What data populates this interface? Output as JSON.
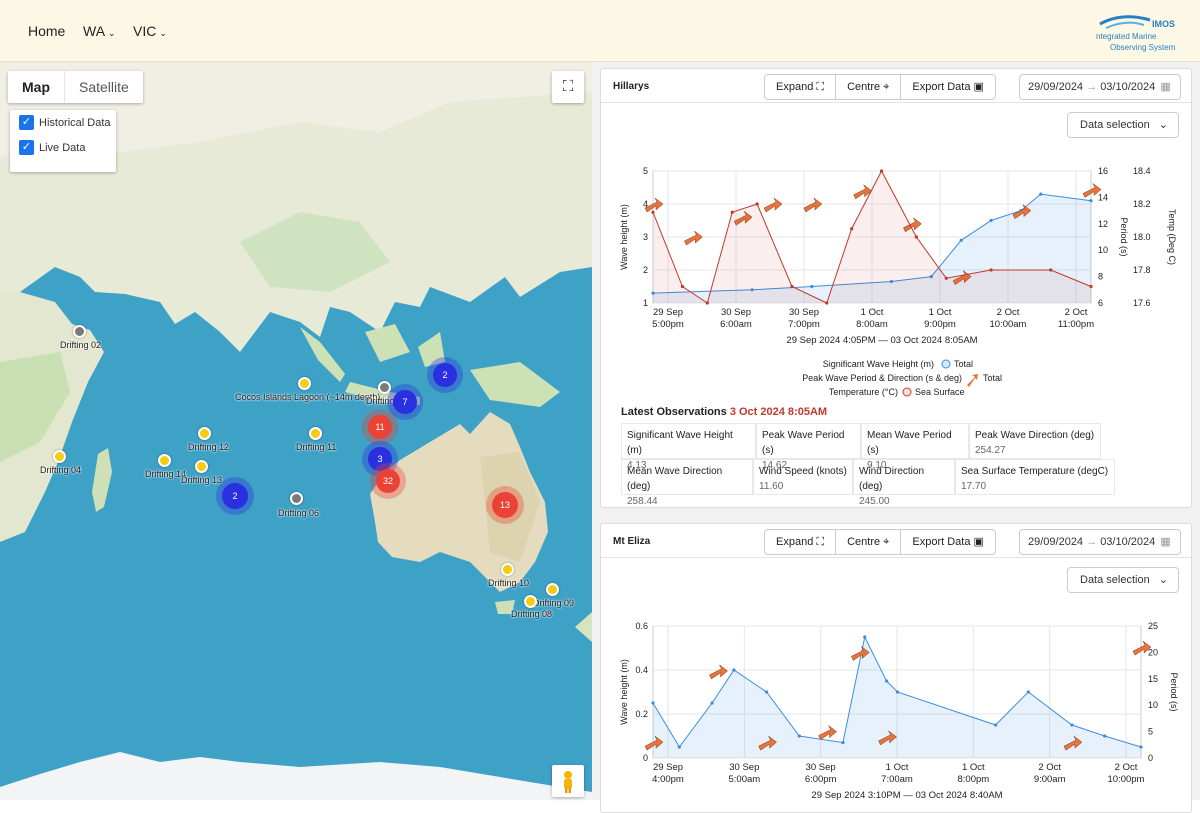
{
  "nav": {
    "home": "Home",
    "wa": "WA",
    "vic": "VIC"
  },
  "logo": {
    "brand": "IMOS",
    "line1": "ntegrated Marine",
    "line2": "Observing System"
  },
  "map": {
    "tabs": {
      "map": "Map",
      "satellite": "Satellite"
    },
    "layers": {
      "historical": "Historical Data",
      "live": "Live Data"
    },
    "labels": {
      "d02": "Drifting 02",
      "d04": "Drifting 04",
      "d14": "Drifting 14",
      "d12": "Drifting 12",
      "d13": "Drifting 13",
      "d06": "Drifting 06",
      "d11": "Drifting 11",
      "cocos": "Cocos Islands Lagoon (~14m depth)",
      "dx": "Drifting",
      "d10": "Drifting 10",
      "d09": "Drifting 09",
      "d08": "Drifting 08"
    },
    "clusters": {
      "c2a": "2",
      "c7": "7",
      "c11": "11",
      "c3": "3",
      "c32": "32",
      "c2b": "2",
      "c13": "13"
    },
    "colors": {
      "ocean": "#3ea1c6",
      "land": "#e8ead8",
      "historical": "#ea4335",
      "live": "#2a2fe0"
    }
  },
  "hillarys": {
    "title": "Hillarys",
    "expand": "Expand",
    "centre": "Centre",
    "export": "Export Data",
    "date_from": "29/09/2024",
    "date_to": "03/10/2024",
    "data_selection": "Data selection",
    "chart": {
      "yleft_label": "Wave height (m)",
      "yperiod_label": "Period (s)",
      "ytemp_label": "Temp (Deg C)",
      "yleft_ticks": [
        "1",
        "2",
        "3",
        "4",
        "5"
      ],
      "yperiod_ticks": [
        "6",
        "8",
        "10",
        "12",
        "14",
        "16"
      ],
      "ytemp_ticks": [
        "17.6",
        "17.8",
        "18.0",
        "18.2",
        "18.4"
      ],
      "xticks": [
        [
          "29 Sep",
          "5:00pm"
        ],
        [
          "30 Sep",
          "6:00am"
        ],
        [
          "30 Sep",
          "7:00pm"
        ],
        [
          "1 Oct",
          "8:00am"
        ],
        [
          "1 Oct",
          "9:00pm"
        ],
        [
          "2 Oct",
          "10:00am"
        ],
        [
          "2 Oct",
          "11:00pm"
        ]
      ],
      "range": "29 Sep 2024 4:05PM — 03 Oct 2024 8:05AM",
      "legend1_label": "Significant Wave Height (m)",
      "legend1_item": "Total",
      "legend2_label": "Peak Wave Period & Direction (s & deg)",
      "legend2_item": "Total",
      "legend3_label": "Temperature (°C)",
      "legend3_item": "Sea Surface"
    },
    "chart_data": {
      "type": "line",
      "title": "",
      "xlabel": "",
      "x_range": [
        "2024-09-29 16:05",
        "2024-10-03 08:05"
      ],
      "ylabel": "Wave height (m)",
      "ylim": [
        1,
        5
      ],
      "y2label": "Period (s)",
      "y2lim": [
        6,
        16
      ],
      "y3label": "Temp (Deg C)",
      "y3lim": [
        17.6,
        18.4
      ],
      "series": [
        {
          "name": "Total",
          "quantity": "Significant Wave Height (m)",
          "x": [
            "2024-09-29 16:05",
            "2024-09-30 12:00",
            "2024-10-01 00:00",
            "2024-10-01 16:00",
            "2024-10-02 00:00",
            "2024-10-02 06:00",
            "2024-10-02 12:00",
            "2024-10-02 18:00",
            "2024-10-02 22:00",
            "2024-10-03 08:05"
          ],
          "values": [
            1.3,
            1.4,
            1.5,
            1.65,
            1.8,
            2.9,
            3.5,
            3.8,
            4.3,
            4.1
          ]
        },
        {
          "name": "Total",
          "quantity": "Peak Wave Period & Direction (s & deg)",
          "x": [
            "2024-09-29 16:05",
            "2024-09-30 00:00",
            "2024-09-30 10:00",
            "2024-09-30 16:00",
            "2024-10-01 00:00",
            "2024-10-01 10:00",
            "2024-10-01 20:00",
            "2024-10-02 06:00",
            "2024-10-02 18:00",
            "2024-10-03 08:05"
          ],
          "values": [
            13.5,
            11,
            12.5,
            13.5,
            13.5,
            14.5,
            12,
            8,
            13,
            14.6
          ]
        },
        {
          "name": "Sea Surface",
          "quantity": "Temperature (°C)",
          "x": [
            "2024-09-29 16:05",
            "2024-09-29 22:00",
            "2024-09-30 03:00",
            "2024-09-30 08:00",
            "2024-09-30 13:00",
            "2024-09-30 20:00",
            "2024-10-01 03:00",
            "2024-10-01 08:00",
            "2024-10-01 14:00",
            "2024-10-01 21:00",
            "2024-10-02 03:00",
            "2024-10-02 12:00",
            "2024-10-03 00:00",
            "2024-10-03 08:05"
          ],
          "values": [
            18.15,
            17.7,
            17.6,
            18.15,
            18.2,
            17.7,
            17.6,
            18.05,
            18.4,
            18.0,
            17.75,
            17.8,
            17.8,
            17.7
          ]
        }
      ]
    },
    "latest": {
      "title": "Latest Observations",
      "time": "3 Oct 2024 8:05AM",
      "sig_label": "Significant Wave Height (m)",
      "sig": "4.13",
      "peakp_label": "Peak Wave Period (s)",
      "peakp": "14.62",
      "meanp_label": "Mean Wave Period (s)",
      "meanp": "9.10",
      "peakd_label": "Peak Wave Direction (deg)",
      "peakd": "254.27",
      "meand_label": "Mean Wave Direction (deg)",
      "meand": "258.44",
      "ws_label": "Wind Speed (knots)",
      "ws": "11.60",
      "wd_label": "Wind Direction (deg)",
      "wd": "245.00",
      "sst_label": "Sea Surface Temperature (degC)",
      "sst": "17.70"
    }
  },
  "mteliza": {
    "title": "Mt Eliza",
    "expand": "Expand",
    "centre": "Centre",
    "export": "Export Data",
    "date_from": "29/09/2024",
    "date_to": "03/10/2024",
    "data_selection": "Data selection",
    "chart": {
      "yleft_label": "Wave height (m)",
      "yperiod_label": "Period (s)",
      "yleft_ticks": [
        "0",
        "0.2",
        "0.4",
        "0.6"
      ],
      "yperiod_ticks": [
        "0",
        "5",
        "10",
        "15",
        "20",
        "25"
      ],
      "xticks": [
        [
          "29 Sep",
          "4:00pm"
        ],
        [
          "30 Sep",
          "5:00am"
        ],
        [
          "30 Sep",
          "6:00pm"
        ],
        [
          "1 Oct",
          "7:00am"
        ],
        [
          "1 Oct",
          "8:00pm"
        ],
        [
          "2 Oct",
          "9:00am"
        ],
        [
          "2 Oct",
          "10:00pm"
        ]
      ],
      "range": "29 Sep 2024 3:10PM — 03 Oct 2024 8:40AM"
    },
    "chart_data": {
      "type": "line",
      "title": "",
      "xlabel": "",
      "x_range": [
        "2024-09-29 15:10",
        "2024-10-03 08:40"
      ],
      "ylabel": "Wave height (m)",
      "ylim": [
        0,
        0.6
      ],
      "y2label": "Period (s)",
      "y2lim": [
        0,
        25
      ],
      "series": [
        {
          "quantity": "Wave height",
          "x": [
            "2024-09-29 15:10",
            "2024-09-29 20:00",
            "2024-09-30 02:00",
            "2024-09-30 06:00",
            "2024-09-30 12:00",
            "2024-09-30 18:00",
            "2024-10-01 02:00",
            "2024-10-01 06:00",
            "2024-10-01 10:00",
            "2024-10-01 12:00",
            "2024-10-02 06:00",
            "2024-10-02 12:00",
            "2024-10-02 20:00",
            "2024-10-03 02:00",
            "2024-10-03 08:40"
          ],
          "values": [
            0.25,
            0.05,
            0.25,
            0.4,
            0.3,
            0.1,
            0.07,
            0.55,
            0.35,
            0.3,
            0.15,
            0.3,
            0.15,
            0.1,
            0.05
          ]
        },
        {
          "quantity": "Period",
          "x": [
            "2024-09-29 15:10",
            "2024-09-30 03:00",
            "2024-09-30 12:00",
            "2024-09-30 23:00",
            "2024-10-01 05:00",
            "2024-10-01 10:00",
            "2024-10-02 20:00",
            "2024-10-03 08:40"
          ],
          "values": [
            3,
            16.5,
            3,
            5,
            20,
            4,
            3,
            21
          ]
        }
      ]
    }
  }
}
